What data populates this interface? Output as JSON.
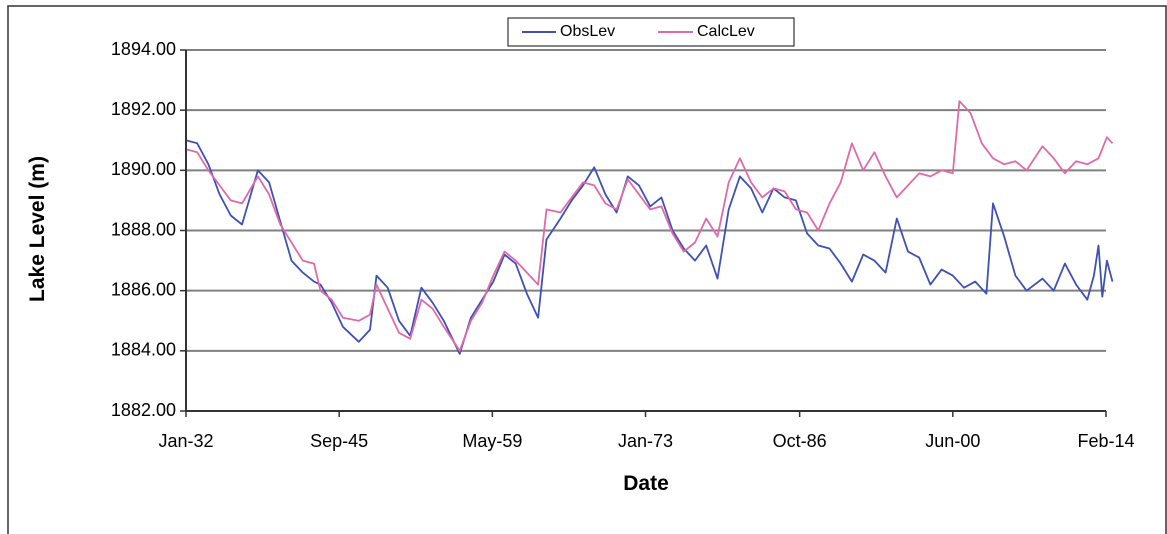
{
  "chart_data": {
    "type": "line",
    "title": "",
    "xlabel": "Date",
    "ylabel": "Lake Level (m)",
    "ylim": [
      1882,
      1894
    ],
    "xlim": [
      "1932-01",
      "2014-02"
    ],
    "grid": true,
    "legend_position": "top-center",
    "y_ticks": [
      "1882.00",
      "1884.00",
      "1886.00",
      "1888.00",
      "1890.00",
      "1892.00",
      "1894.00"
    ],
    "x_ticks": [
      {
        "date": "1932-01",
        "label": "Jan-32"
      },
      {
        "date": "1945-09",
        "label": "Sep-45"
      },
      {
        "date": "1959-05",
        "label": "May-59"
      },
      {
        "date": "1973-01",
        "label": "Jan-73"
      },
      {
        "date": "1986-10",
        "label": "Oct-86"
      },
      {
        "date": "2000-06",
        "label": "Jun-00"
      },
      {
        "date": "2014-02",
        "label": "Feb-14"
      }
    ],
    "series": [
      {
        "name": "ObsLev",
        "color": "#3f51b5",
        "points": [
          [
            "1932-01",
            1891.0
          ],
          [
            "1933-01",
            1890.9
          ],
          [
            "1934-01",
            1890.2
          ],
          [
            "1935-01",
            1889.2
          ],
          [
            "1936-01",
            1888.5
          ],
          [
            "1937-01",
            1888.2
          ],
          [
            "1938-06",
            1890.0
          ],
          [
            "1939-06",
            1889.6
          ],
          [
            "1940-06",
            1888.3
          ],
          [
            "1941-06",
            1887.0
          ],
          [
            "1942-06",
            1886.6
          ],
          [
            "1943-06",
            1886.3
          ],
          [
            "1944-01",
            1886.2
          ],
          [
            "1945-01",
            1885.6
          ],
          [
            "1946-01",
            1884.8
          ],
          [
            "1947-06",
            1884.3
          ],
          [
            "1948-06",
            1884.7
          ],
          [
            "1949-01",
            1886.5
          ],
          [
            "1950-01",
            1886.1
          ],
          [
            "1951-01",
            1885.0
          ],
          [
            "1952-01",
            1884.5
          ],
          [
            "1953-01",
            1886.1
          ],
          [
            "1954-01",
            1885.6
          ],
          [
            "1955-01",
            1885.0
          ],
          [
            "1956-06",
            1883.9
          ],
          [
            "1957-06",
            1885.1
          ],
          [
            "1958-06",
            1885.7
          ],
          [
            "1959-06",
            1886.3
          ],
          [
            "1960-06",
            1887.2
          ],
          [
            "1961-06",
            1886.9
          ],
          [
            "1962-06",
            1885.9
          ],
          [
            "1963-06",
            1885.1
          ],
          [
            "1964-03",
            1887.7
          ],
          [
            "1965-06",
            1888.4
          ],
          [
            "1966-06",
            1889.0
          ],
          [
            "1967-06",
            1889.5
          ],
          [
            "1968-06",
            1890.1
          ],
          [
            "1969-06",
            1889.2
          ],
          [
            "1970-06",
            1888.6
          ],
          [
            "1971-06",
            1889.8
          ],
          [
            "1972-06",
            1889.5
          ],
          [
            "1973-06",
            1888.8
          ],
          [
            "1974-06",
            1889.1
          ],
          [
            "1975-06",
            1888.0
          ],
          [
            "1976-06",
            1887.4
          ],
          [
            "1977-06",
            1887.0
          ],
          [
            "1978-06",
            1887.5
          ],
          [
            "1979-06",
            1886.4
          ],
          [
            "1980-06",
            1888.7
          ],
          [
            "1981-06",
            1889.8
          ],
          [
            "1982-06",
            1889.4
          ],
          [
            "1983-06",
            1888.6
          ],
          [
            "1984-06",
            1889.4
          ],
          [
            "1985-06",
            1889.1
          ],
          [
            "1986-06",
            1889.0
          ],
          [
            "1987-06",
            1887.9
          ],
          [
            "1988-06",
            1887.5
          ],
          [
            "1989-06",
            1887.4
          ],
          [
            "1990-06",
            1886.9
          ],
          [
            "1991-06",
            1886.3
          ],
          [
            "1992-06",
            1887.2
          ],
          [
            "1993-06",
            1887.0
          ],
          [
            "1994-06",
            1886.6
          ],
          [
            "1995-06",
            1888.4
          ],
          [
            "1996-06",
            1887.3
          ],
          [
            "1997-06",
            1887.1
          ],
          [
            "1998-06",
            1886.2
          ],
          [
            "1999-06",
            1886.7
          ],
          [
            "2000-06",
            1886.5
          ],
          [
            "2001-06",
            1886.1
          ],
          [
            "2002-06",
            1886.3
          ],
          [
            "2003-06",
            1885.9
          ],
          [
            "2004-01",
            1888.9
          ],
          [
            "2005-01",
            1887.8
          ],
          [
            "2006-01",
            1886.5
          ],
          [
            "2007-01",
            1886.0
          ],
          [
            "2008-06",
            1886.4
          ],
          [
            "2009-06",
            1886.0
          ],
          [
            "2010-06",
            1886.9
          ],
          [
            "2011-06",
            1886.2
          ],
          [
            "2012-06",
            1885.7
          ],
          [
            "2013-01",
            1886.5
          ],
          [
            "2013-06",
            1887.5
          ],
          [
            "2013-10",
            1885.8
          ],
          [
            "2014-03",
            1887.0
          ],
          [
            "2014-09",
            1886.3
          ]
        ]
      },
      {
        "name": "CalcLev",
        "color": "#e06aa8",
        "points": [
          [
            "1932-01",
            1890.7
          ],
          [
            "1933-01",
            1890.6
          ],
          [
            "1934-01",
            1890.0
          ],
          [
            "1935-01",
            1889.5
          ],
          [
            "1936-01",
            1889.0
          ],
          [
            "1937-01",
            1888.9
          ],
          [
            "1938-06",
            1889.8
          ],
          [
            "1939-06",
            1889.2
          ],
          [
            "1940-06",
            1888.2
          ],
          [
            "1941-06",
            1887.6
          ],
          [
            "1942-06",
            1887.0
          ],
          [
            "1943-06",
            1886.9
          ],
          [
            "1944-01",
            1886.0
          ],
          [
            "1945-01",
            1885.7
          ],
          [
            "1946-01",
            1885.1
          ],
          [
            "1947-06",
            1885.0
          ],
          [
            "1948-06",
            1885.2
          ],
          [
            "1949-01",
            1886.2
          ],
          [
            "1950-01",
            1885.4
          ],
          [
            "1951-01",
            1884.6
          ],
          [
            "1952-01",
            1884.4
          ],
          [
            "1953-01",
            1885.7
          ],
          [
            "1954-01",
            1885.4
          ],
          [
            "1955-01",
            1884.8
          ],
          [
            "1956-06",
            1884.0
          ],
          [
            "1957-06",
            1885.0
          ],
          [
            "1958-06",
            1885.6
          ],
          [
            "1959-06",
            1886.5
          ],
          [
            "1960-06",
            1887.3
          ],
          [
            "1961-06",
            1887.0
          ],
          [
            "1962-06",
            1886.6
          ],
          [
            "1963-06",
            1886.2
          ],
          [
            "1964-03",
            1888.7
          ],
          [
            "1965-06",
            1888.6
          ],
          [
            "1966-06",
            1889.1
          ],
          [
            "1967-06",
            1889.6
          ],
          [
            "1968-06",
            1889.5
          ],
          [
            "1969-06",
            1888.9
          ],
          [
            "1970-06",
            1888.7
          ],
          [
            "1971-06",
            1889.7
          ],
          [
            "1972-06",
            1889.2
          ],
          [
            "1973-06",
            1888.7
          ],
          [
            "1974-06",
            1888.8
          ],
          [
            "1975-06",
            1887.9
          ],
          [
            "1976-06",
            1887.3
          ],
          [
            "1977-06",
            1887.6
          ],
          [
            "1978-06",
            1888.4
          ],
          [
            "1979-06",
            1887.8
          ],
          [
            "1980-06",
            1889.6
          ],
          [
            "1981-06",
            1890.4
          ],
          [
            "1982-06",
            1889.6
          ],
          [
            "1983-06",
            1889.1
          ],
          [
            "1984-06",
            1889.4
          ],
          [
            "1985-06",
            1889.3
          ],
          [
            "1986-06",
            1888.7
          ],
          [
            "1987-06",
            1888.6
          ],
          [
            "1988-06",
            1888.0
          ],
          [
            "1989-06",
            1888.9
          ],
          [
            "1990-06",
            1889.6
          ],
          [
            "1991-06",
            1890.9
          ],
          [
            "1992-06",
            1890.0
          ],
          [
            "1993-06",
            1890.6
          ],
          [
            "1994-06",
            1889.8
          ],
          [
            "1995-06",
            1889.1
          ],
          [
            "1996-06",
            1889.5
          ],
          [
            "1997-06",
            1889.9
          ],
          [
            "1998-06",
            1889.8
          ],
          [
            "1999-06",
            1890.0
          ],
          [
            "2000-06",
            1889.9
          ],
          [
            "2001-01",
            1892.3
          ],
          [
            "2002-01",
            1891.9
          ],
          [
            "2003-01",
            1890.9
          ],
          [
            "2004-01",
            1890.4
          ],
          [
            "2005-01",
            1890.2
          ],
          [
            "2006-01",
            1890.3
          ],
          [
            "2007-01",
            1890.0
          ],
          [
            "2008-06",
            1890.8
          ],
          [
            "2009-06",
            1890.4
          ],
          [
            "2010-06",
            1889.9
          ],
          [
            "2011-06",
            1890.3
          ],
          [
            "2012-06",
            1890.2
          ],
          [
            "2013-06",
            1890.4
          ],
          [
            "2014-03",
            1891.1
          ],
          [
            "2014-09",
            1890.9
          ]
        ]
      }
    ]
  }
}
